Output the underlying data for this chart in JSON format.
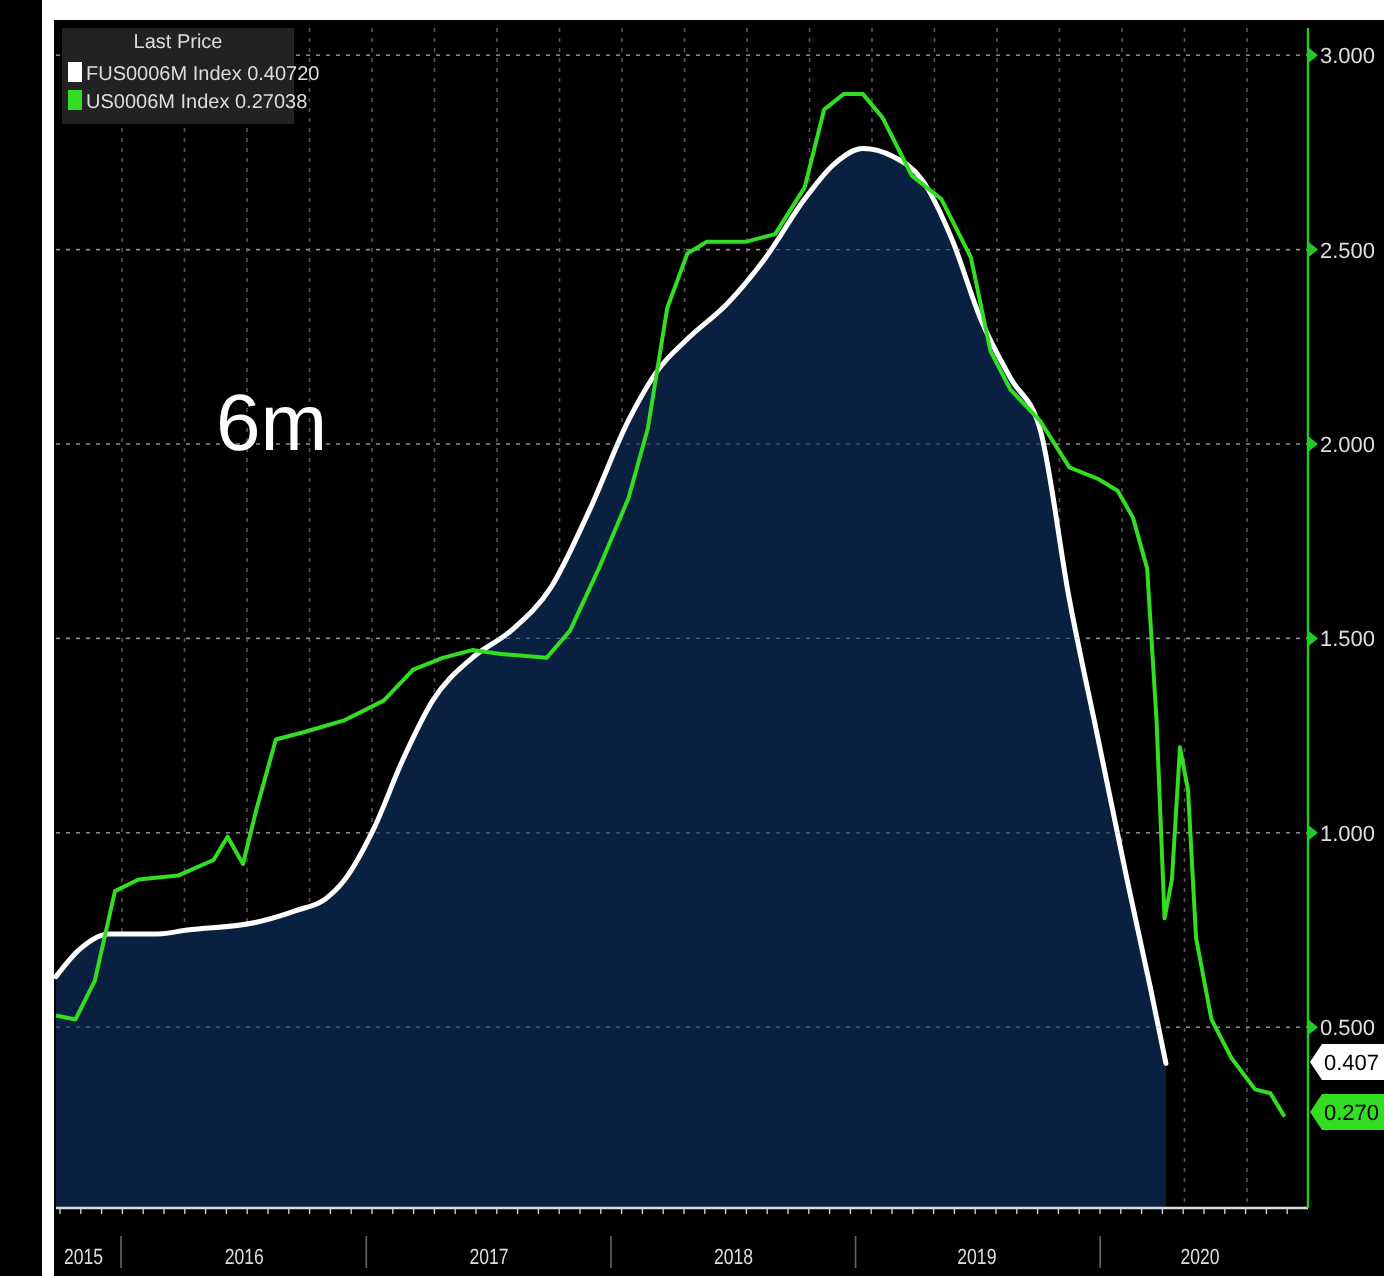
{
  "chart_data": {
    "type": "area",
    "legend_title": "Last Price",
    "legend": "top left",
    "grid": true,
    "annotations": [
      "6m",
      "0.407",
      "0.270"
    ],
    "xlim": [
      "2015-09-26",
      "2020-11-06"
    ],
    "xticks": [
      {
        "value": "2015-11-06",
        "label": "2015"
      },
      {
        "value": "2016-07-03",
        "label": "2016"
      },
      {
        "value": "2017-07-03",
        "label": "2017"
      },
      {
        "value": "2018-07-03",
        "label": "2018"
      },
      {
        "value": "2019-07-01",
        "label": "2019"
      },
      {
        "value": "2020-05-29",
        "label": "2020"
      }
    ],
    "ylim": [
      0.035,
      3.07
    ],
    "yticks": [
      {
        "value": 0.5,
        "label": "0.500"
      },
      {
        "value": 1,
        "label": "1.000"
      },
      {
        "value": 1.5,
        "label": "1.500"
      },
      {
        "value": 2,
        "label": "2.000"
      },
      {
        "value": 2.5,
        "label": "2.500"
      },
      {
        "value": 3,
        "label": "3.000"
      }
    ],
    "series": [
      {
        "name": "FUS0006M Index 0.40720",
        "color": "#ffffff",
        "x": [
          "2015-09-26",
          "2015-10-31",
          "2015-12-14",
          "2016-02-25",
          "2016-04-09",
          "2016-07-21",
          "2016-09-18",
          "2016-11-01",
          "2016-11-30",
          "2017-01-12",
          "2017-02-25",
          "2017-04-10",
          "2017-06-08",
          "2017-08-05",
          "2017-10-03",
          "2017-11-30",
          "2018-01-27",
          "2018-03-12",
          "2018-04-25",
          "2018-06-23",
          "2018-08-20",
          "2018-10-17",
          "2018-11-30",
          "2019-01-12",
          "2019-02-25",
          "2019-04-10",
          "2019-05-24",
          "2019-07-07",
          "2019-08-20",
          "2019-10-03",
          "2019-11-16",
          "2019-12-29",
          "2020-02-10",
          "2020-03-16",
          "2020-04-08"
        ],
        "values": [
          0.63,
          0.7,
          0.74,
          0.74,
          0.75,
          0.77,
          0.8,
          0.83,
          0.88,
          1.01,
          1.19,
          1.34,
          1.45,
          1.52,
          1.63,
          1.83,
          2.06,
          2.19,
          2.27,
          2.36,
          2.48,
          2.63,
          2.72,
          2.76,
          2.74,
          2.68,
          2.53,
          2.32,
          2.17,
          2.04,
          1.6,
          1.24,
          0.88,
          0.6,
          0.407
        ]
      },
      {
        "name": "US0006M Index 0.27038",
        "type": "line",
        "color": "#33dd22",
        "x": [
          "2015-09-26",
          "2015-10-25",
          "2015-11-23",
          "2015-12-23",
          "2016-01-27",
          "2016-03-26",
          "2016-05-18",
          "2016-06-08",
          "2016-07-01",
          "2016-07-21",
          "2016-08-19",
          "2016-10-02",
          "2016-11-30",
          "2017-01-27",
          "2017-03-12",
          "2017-04-25",
          "2017-06-08",
          "2017-07-21",
          "2017-09-27",
          "2017-11-01",
          "2017-12-14",
          "2018-01-27",
          "2018-02-25",
          "2018-03-26",
          "2018-04-25",
          "2018-05-24",
          "2018-07-21",
          "2018-09-03",
          "2018-10-17",
          "2018-11-15",
          "2018-12-14",
          "2019-01-12",
          "2019-02-10",
          "2019-03-26",
          "2019-05-09",
          "2019-06-22",
          "2019-07-21",
          "2019-08-20",
          "2019-10-03",
          "2019-11-16",
          "2019-12-29",
          "2020-01-27",
          "2020-02-19",
          "2020-03-11",
          "2020-03-25",
          "2020-04-06",
          "2020-04-17",
          "2020-04-29",
          "2020-05-11",
          "2020-05-23",
          "2020-06-15",
          "2020-07-15",
          "2020-08-19",
          "2020-09-11",
          "2020-10-02"
        ],
        "values": [
          0.53,
          0.52,
          0.62,
          0.85,
          0.88,
          0.89,
          0.93,
          0.99,
          0.92,
          1.06,
          1.24,
          1.26,
          1.29,
          1.34,
          1.42,
          1.45,
          1.47,
          1.46,
          1.45,
          1.52,
          1.68,
          1.86,
          2.04,
          2.35,
          2.49,
          2.52,
          2.52,
          2.54,
          2.66,
          2.86,
          2.9,
          2.9,
          2.84,
          2.69,
          2.63,
          2.48,
          2.24,
          2.14,
          2.06,
          1.94,
          1.91,
          1.88,
          1.81,
          1.68,
          1.29,
          0.78,
          0.88,
          1.22,
          1.11,
          0.73,
          0.52,
          0.42,
          0.34,
          0.33,
          0.27
        ]
      }
    ]
  }
}
